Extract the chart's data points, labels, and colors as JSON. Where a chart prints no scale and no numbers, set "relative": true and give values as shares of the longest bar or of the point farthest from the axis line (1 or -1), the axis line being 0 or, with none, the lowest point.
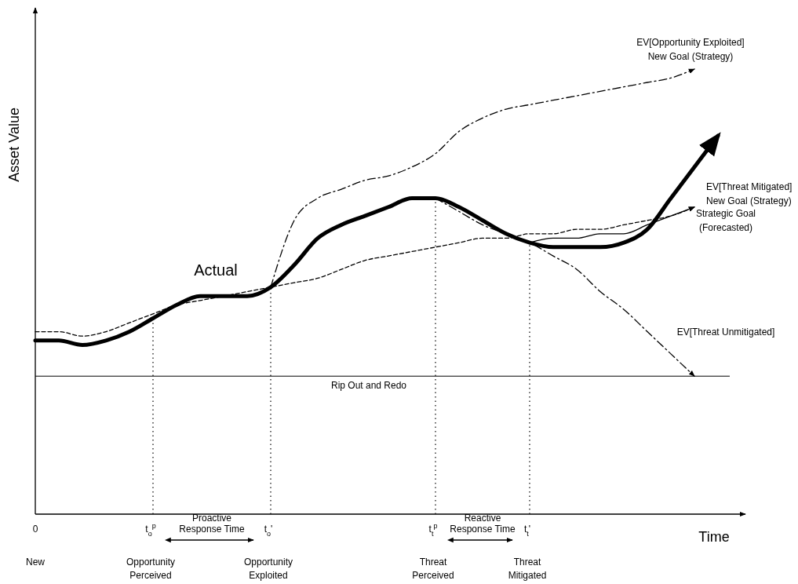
{
  "chart_data": {
    "type": "line",
    "relative": true,
    "ylabel": "Asset Value",
    "xlabel": "Time",
    "categories": [
      "0\nNew",
      null,
      null,
      null,
      null,
      "t$_{o}$$^{p}$\nOpportunity\nPerceived",
      null,
      null,
      null,
      null,
      "t$_{o}$'\nOpportunity\nExploited",
      null,
      null,
      null,
      null,
      null,
      null,
      "t$_{t}$$^{p}$\nThreat\nPerceived",
      null,
      null,
      null,
      "t$_{t}$'\nThreat\nMitigated",
      null,
      null,
      null,
      null,
      null,
      null,
      null,
      null,
      null
    ],
    "series": [
      {
        "name": "Actual",
        "color": "#000000",
        "line_style": "solid",
        "values": [
          0.39,
          0.39,
          0.38,
          0.39,
          0.41,
          0.44,
          0.47,
          0.49,
          0.49,
          0.49,
          0.51,
          0.56,
          0.62,
          0.65,
          0.67,
          0.69,
          0.71,
          0.71,
          0.69,
          0.66,
          0.63,
          0.61,
          0.6,
          0.6,
          0.6,
          0.61,
          0.64,
          0.71,
          0.78,
          0.85,
          null
        ]
      },
      {
        "name": "EV[Opportunity Exploited]\nNew Goal (Strategy)",
        "color": "#000000",
        "line_style": "dashed",
        "values": [
          null,
          null,
          null,
          null,
          null,
          null,
          null,
          null,
          null,
          null,
          0.51,
          0.66,
          0.71,
          0.73,
          0.75,
          0.76,
          0.78,
          0.81,
          0.86,
          0.89,
          0.91,
          0.92,
          0.93,
          0.94,
          0.95,
          0.96,
          0.97,
          0.98,
          1.0,
          null,
          null
        ]
      },
      {
        "name": "EV[Threat Mitigated]\nNew Goal (Strategy)",
        "color": "#000000",
        "line_style": "solid",
        "values": [
          null,
          null,
          null,
          null,
          null,
          null,
          null,
          null,
          null,
          null,
          null,
          null,
          null,
          null,
          null,
          null,
          null,
          null,
          null,
          null,
          null,
          0.61,
          0.62,
          0.62,
          0.63,
          0.63,
          0.65,
          0.67,
          0.69,
          null,
          null
        ]
      },
      {
        "name": "Strategic Goal\n(Forecasted)",
        "color": "#000000",
        "line_style": "dashed",
        "values": [
          0.41,
          0.41,
          0.4,
          0.41,
          0.43,
          0.45,
          0.47,
          0.48,
          0.49,
          0.5,
          0.51,
          0.52,
          0.53,
          0.55,
          0.57,
          0.58,
          0.59,
          0.6,
          0.61,
          0.62,
          0.62,
          0.63,
          0.63,
          0.64,
          0.64,
          0.65,
          0.66,
          0.67,
          0.69,
          null,
          null
        ]
      },
      {
        "name": "EV[Threat Unmitigated]",
        "color": "#000000",
        "line_style": "dashed",
        "values": [
          null,
          null,
          null,
          null,
          null,
          null,
          null,
          null,
          null,
          null,
          null,
          null,
          null,
          null,
          null,
          null,
          null,
          0.71,
          0.68,
          0.65,
          0.63,
          0.61,
          0.58,
          0.55,
          0.5,
          0.46,
          0.41,
          0.36,
          0.31,
          null,
          null
        ]
      }
    ],
    "ref_lines": [
      {
        "axis": "x",
        "value": "t$_{o}$$^{p}$\nOpportunity\nPerceived",
        "line_style": "dotted"
      },
      {
        "axis": "x",
        "value": "t$_{o}$'\nOpportunity\nExploited",
        "line_style": "dotted"
      },
      {
        "axis": "x",
        "value": "t$_{t}$$^{p}$\nThreat\nPerceived",
        "line_style": "dotted"
      },
      {
        "axis": "x",
        "value": "t$_{t}$'\nThreat\nMitigated",
        "line_style": "dotted"
      },
      {
        "axis": "y",
        "value": 0.31,
        "label": "Rip Out and Redo",
        "line_style": "solid"
      }
    ],
    "annotations": [
      "Proactive\nResponse Time",
      "Reactive\nResponse Time"
    ]
  }
}
